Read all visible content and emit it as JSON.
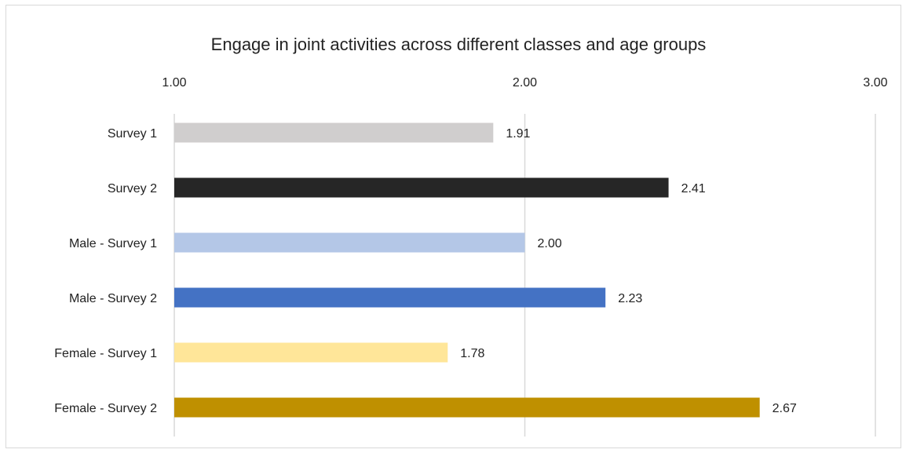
{
  "chart_data": {
    "type": "bar",
    "orientation": "horizontal",
    "title": "Engage in joint activities across different classes and age groups",
    "xlabel": "",
    "ylabel": "",
    "xlim": [
      1.0,
      3.0
    ],
    "x_ticks": [
      "1.00",
      "2.00",
      "3.00"
    ],
    "x_tick_values": [
      1.0,
      2.0,
      3.0
    ],
    "x_axis_position": "top",
    "grid": true,
    "legend": "none",
    "categories": [
      "Survey 1",
      "Survey 2",
      "Male - Survey 1",
      "Male - Survey 2",
      "Female - Survey 1",
      "Female - Survey 2"
    ],
    "values": [
      1.91,
      2.41,
      2.0,
      2.23,
      1.78,
      2.67
    ],
    "value_labels": [
      "1.91",
      "2.41",
      "2.00",
      "2.23",
      "1.78",
      "2.67"
    ],
    "colors": [
      "#d0cece",
      "#262626",
      "#b4c7e7",
      "#4472c4",
      "#ffe699",
      "#bf9000"
    ]
  }
}
